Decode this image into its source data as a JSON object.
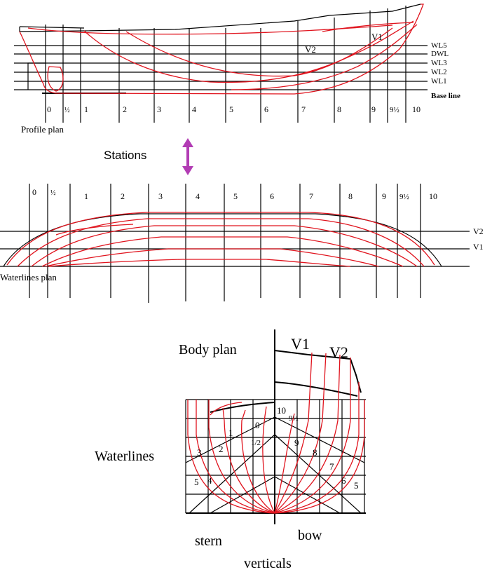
{
  "profile_plan": {
    "caption": "Profile plan",
    "waterline_labels": [
      "WL5",
      "DWL",
      "WL3",
      "WL2",
      "WL1",
      "Base line"
    ],
    "station_labels": [
      "0",
      "½",
      "1",
      "2",
      "3",
      "4",
      "5",
      "6",
      "7",
      "8",
      "9",
      "9½",
      "10"
    ],
    "annotations": [
      "V1",
      "V2"
    ]
  },
  "stations_label": "Stations",
  "arrow_color": "#b23cb4",
  "waterlines_plan": {
    "caption": "Waterlines plan",
    "station_labels": [
      "0",
      "½",
      "1",
      "2",
      "3",
      "4",
      "5",
      "6",
      "7",
      "8",
      "9",
      "9½",
      "10"
    ],
    "line_labels": [
      "V2",
      "V1"
    ]
  },
  "body_plan": {
    "title": "Body plan",
    "annotations": [
      "V1",
      "V2"
    ],
    "waterlines_label": "Waterlines",
    "stern_label": "stern",
    "bow_label": "bow",
    "verticals_label": "verticals",
    "section_numbers": [
      "10",
      "9½",
      "0",
      "1",
      "1/2",
      "9",
      "8",
      "2",
      "3",
      "7",
      "6",
      "5",
      "5",
      "4"
    ]
  },
  "colors": {
    "lines": "#e0141e",
    "grid": "#000000"
  }
}
